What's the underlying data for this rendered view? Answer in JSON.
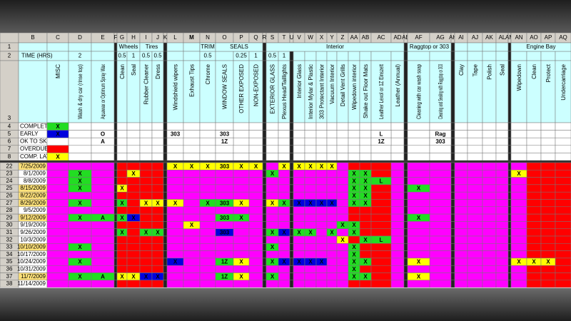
{
  "date_column": "B",
  "columns": [
    {
      "letter": "C",
      "header": "MISC",
      "fill": "#ff00ff"
    },
    {
      "letter": "D",
      "header": "Wash & dry car (rinse top)",
      "hours": 2,
      "fill": "#ff00ff"
    },
    {
      "letter": "E",
      "header": "Aquawax or Optimum Spray Wax",
      "fill": "#ff00ff"
    },
    {
      "letter": "F",
      "fill": "#222222"
    },
    {
      "letter": "G",
      "header": "Clean",
      "hours": 0.5,
      "fill": "#ff0000"
    },
    {
      "letter": "H",
      "header": "Seal",
      "hours": 1,
      "fill": "#ff0000"
    },
    {
      "letter": "I",
      "header": "Rubber Cleaner",
      "hours": 0.5,
      "fill": "#ff0000"
    },
    {
      "letter": "J",
      "header": "Dress",
      "hours": 0.5,
      "fill": "#ff0000"
    },
    {
      "letter": "K",
      "fill": "#222222"
    },
    {
      "letter": "L",
      "header": "Windshield wipers",
      "fill": "#ff00ff"
    },
    {
      "letter": "M",
      "header": "Exhaust Tips",
      "fill": "#ff00ff"
    },
    {
      "letter": "N",
      "header": "Chrome",
      "hours": 0.5,
      "fill": "#ff00ff"
    },
    {
      "letter": "O",
      "header": "WINDOW SEALS",
      "fill": "#ff00ff"
    },
    {
      "letter": "P",
      "header": "OTHER EXPOSED",
      "hours": 0.25,
      "fill": "#ff00ff"
    },
    {
      "letter": "Q",
      "header": "NON-EXPOSED",
      "hours": 1,
      "fill": "#ff00ff"
    },
    {
      "letter": "R",
      "fill": "#222222"
    },
    {
      "letter": "S",
      "header": "EXTERIOR GLASS",
      "hours": 0.5,
      "fill": "#ff00ff"
    },
    {
      "letter": "T",
      "header": "Plexus Head/Taillights",
      "hours": 1,
      "fill": "#ff00ff"
    },
    {
      "letter": "U",
      "fill": "#222222"
    },
    {
      "letter": "V",
      "header": "Interior Glass",
      "fill": "#ff00ff"
    },
    {
      "letter": "W",
      "header": "Interior Mylar & Plastic",
      "fill": "#ff00ff"
    },
    {
      "letter": "X",
      "header": "303 Protectant Interior",
      "fill": "#ff00ff"
    },
    {
      "letter": "Y",
      "header": "Vacuum Interior",
      "fill": "#ff00ff"
    },
    {
      "letter": "Z",
      "header": "Detail Vent Grills",
      "fill": "#ff00ff"
    },
    {
      "letter": "AA",
      "header": "Wipedown interior",
      "fill": "#ff0000"
    },
    {
      "letter": "AB",
      "header": "Shake out Floor Mats",
      "fill": "#ff0000"
    },
    {
      "letter": "AC",
      "header": "Leather Lexol or 1Z Einszett",
      "fill": "#ff0000"
    },
    {
      "letter": "AD",
      "header": "Leather (Annual)",
      "fill": "#ff00ff"
    },
    {
      "letter": "AE",
      "fill": "#222222"
    },
    {
      "letter": "AF",
      "header": "Cleaning with car wash soap",
      "fill": "#ff00ff"
    },
    {
      "letter": "AG",
      "header": "Cleaning and Sealing with Raggtop or 303",
      "fill": "#ff00ff"
    },
    {
      "letter": "AH",
      "fill": "#222222"
    },
    {
      "letter": "AI",
      "header": "Clay",
      "fill": "#ff00ff"
    },
    {
      "letter": "AJ",
      "header": "Tape",
      "fill": "#ff00ff"
    },
    {
      "letter": "AK",
      "header": "Polish",
      "fill": "#ff00ff"
    },
    {
      "letter": "AL",
      "header": "Seal",
      "fill": "#ff00ff"
    },
    {
      "letter": "AM",
      "fill": "#222222"
    },
    {
      "letter": "AN",
      "header": "Wipedown",
      "fill": "#ff00ff"
    },
    {
      "letter": "AO",
      "header": "Clean",
      "fill": "#ff0000"
    },
    {
      "letter": "AP",
      "header": "Protect",
      "fill": "#ff0000"
    },
    {
      "letter": "AQ",
      "header": "Undercarriage",
      "fill": "#ff0000"
    }
  ],
  "groups": [
    {
      "label": "Wheels",
      "from": "G",
      "to": "H"
    },
    {
      "label": "Tires",
      "from": "I",
      "to": "J"
    },
    {
      "label": "TRIM",
      "from": "N",
      "to": "N"
    },
    {
      "label": "SEALS",
      "from": "O",
      "to": "Q"
    },
    {
      "label": "Interior",
      "from": "S",
      "to": "AD"
    },
    {
      "label": "Raggtop or 303",
      "from": "AF",
      "to": "AG"
    },
    {
      "label": "Engine Bay",
      "from": "AN",
      "to": "AQ"
    }
  ],
  "header_rows": [
    1,
    2,
    3
  ],
  "time_label": "TIME (HRS)",
  "legend": [
    {
      "row": 4,
      "label": "COMPLETE",
      "marks": [
        [
          "C",
          "X",
          "#22dd22"
        ]
      ]
    },
    {
      "row": 5,
      "label": "EARLY",
      "marks": [
        [
          "C",
          "X",
          "#0000dd"
        ],
        [
          "E",
          "O",
          "#ffffff"
        ],
        [
          "L",
          "303",
          "#ffffff"
        ],
        [
          "O",
          "303",
          "#ffffff"
        ],
        [
          "AC",
          "L",
          "#ffffff"
        ],
        [
          "AG",
          "Rag",
          "#ffffff"
        ]
      ]
    },
    {
      "row": 6,
      "label": "OK TO SKIP",
      "marks": [
        [
          "E",
          "A",
          "#ffffff"
        ],
        [
          "O",
          "1Z",
          "#ffffff"
        ],
        [
          "AC",
          "1Z",
          "#ffffff"
        ],
        [
          "AG",
          "303",
          "#ffffff"
        ]
      ]
    },
    {
      "row": 7,
      "label": "OVERDUE",
      "marks": [
        [
          "C",
          "",
          "#ff0000"
        ]
      ]
    },
    {
      "row": 8,
      "label": "COMP. LATE",
      "marks": [
        [
          "C",
          "X",
          "#ffff00"
        ]
      ]
    }
  ],
  "rows": [
    {
      "row": 22,
      "date": "7/25/2009",
      "date_fill": "#ffe27a",
      "marks": [
        [
          "L",
          "X",
          "#ffff00"
        ],
        [
          "M",
          "X",
          "#ffff00"
        ],
        [
          "N",
          "X",
          "#ffff00"
        ],
        [
          "O",
          "303",
          "#ffff00"
        ],
        [
          "P",
          "X",
          "#ffff00"
        ],
        [
          "Q",
          "X",
          "#ffff00"
        ],
        [
          "T",
          "X",
          "#ffff00"
        ],
        [
          "V",
          "X",
          "#ffff00"
        ],
        [
          "W",
          "X",
          "#ffff00"
        ],
        [
          "X",
          "X",
          "#ffff00"
        ],
        [
          "Y",
          "X",
          "#ffff00"
        ]
      ]
    },
    {
      "row": 23,
      "date": "8/1/2009",
      "date_fill": "#ffffff",
      "marks": [
        [
          "D",
          "X",
          "#22dd22"
        ],
        [
          "H",
          "X",
          "#ffff00"
        ],
        [
          "S",
          "X",
          "#22dd22"
        ],
        [
          "AA",
          "X",
          "#22dd22"
        ],
        [
          "AB",
          "X",
          "#22dd22"
        ],
        [
          "AN",
          "X",
          "#ffff00"
        ]
      ]
    },
    {
      "row": 24,
      "date": "8/8/2009",
      "date_fill": "#ffffff",
      "marks": [
        [
          "D",
          "X",
          "#22dd22"
        ],
        [
          "AA",
          "X",
          "#22dd22"
        ],
        [
          "AB",
          "X",
          "#22dd22"
        ],
        [
          "AC",
          "L",
          "#22dd22"
        ]
      ]
    },
    {
      "row": 25,
      "date": "8/15/2009",
      "date_fill": "#ffe27a",
      "marks": [
        [
          "D",
          "X",
          "#22dd22"
        ],
        [
          "G",
          "X",
          "#ffff00"
        ],
        [
          "AA",
          "X",
          "#22dd22"
        ],
        [
          "AB",
          "X",
          "#22dd22"
        ],
        [
          "AF",
          "X",
          "#22dd22"
        ]
      ]
    },
    {
      "row": 26,
      "date": "8/22/2009",
      "date_fill": "#ffe27a",
      "marks": [
        [
          "AA",
          "X",
          "#22dd22"
        ],
        [
          "AB",
          "X",
          "#22dd22"
        ]
      ]
    },
    {
      "row": 27,
      "date": "8/29/2009",
      "date_fill": "#ffe27a",
      "marks": [
        [
          "D",
          "X",
          "#22dd22"
        ],
        [
          "G",
          "X",
          "#22dd22"
        ],
        [
          "I",
          "X",
          "#ffff00"
        ],
        [
          "J",
          "X",
          "#ffff00"
        ],
        [
          "L",
          "X",
          "#ffff00"
        ],
        [
          "N",
          "X",
          "#22dd22"
        ],
        [
          "O",
          "303",
          "#22dd22"
        ],
        [
          "P",
          "X",
          "#ffff00"
        ],
        [
          "S",
          "X",
          "#ffff00"
        ],
        [
          "T",
          "X",
          "#22dd22"
        ],
        [
          "V",
          "X",
          "#0000dd"
        ],
        [
          "W",
          "X",
          "#0000dd"
        ],
        [
          "X",
          "X",
          "#0000dd"
        ],
        [
          "Y",
          "X",
          "#0000dd"
        ],
        [
          "AA",
          "X",
          "#22dd22"
        ],
        [
          "AB",
          "X",
          "#22dd22"
        ]
      ]
    },
    {
      "row": 28,
      "date": "9/5/2009",
      "date_fill": "#ffffff",
      "marks": []
    },
    {
      "row": 29,
      "date": "9/12/2009",
      "date_fill": "#ffe27a",
      "marks": [
        [
          "D",
          "X",
          "#22dd22"
        ],
        [
          "E",
          "A",
          "#22dd22"
        ],
        [
          "G",
          "X",
          "#22dd22"
        ],
        [
          "H",
          "X",
          "#0000dd"
        ],
        [
          "O",
          "303",
          "#22dd22"
        ],
        [
          "P",
          "X",
          "#22dd22"
        ],
        [
          "AF",
          "X",
          "#22dd22"
        ]
      ]
    },
    {
      "row": 30,
      "date": "9/19/2009",
      "date_fill": "#ffffff",
      "marks": [
        [
          "M",
          "X",
          "#ffff00"
        ],
        [
          "Z",
          "X",
          "#22dd22"
        ],
        [
          "AA",
          "X",
          "#22dd22"
        ]
      ]
    },
    {
      "row": 31,
      "date": "9/26/2009",
      "date_fill": "#ffffff",
      "marks": [
        [
          "G",
          "X",
          "#22dd22"
        ],
        [
          "I",
          "X",
          "#22dd22"
        ],
        [
          "J",
          "X",
          "#22dd22"
        ],
        [
          "O",
          "303",
          "#0000dd"
        ],
        [
          "S",
          "X",
          "#22dd22"
        ],
        [
          "T",
          "X",
          "#0000dd"
        ],
        [
          "V",
          "X",
          "#22dd22"
        ],
        [
          "W",
          "X",
          "#22dd22"
        ],
        [
          "Y",
          "X",
          "#22dd22"
        ],
        [
          "AA",
          "X",
          "#22dd22"
        ]
      ]
    },
    {
      "row": 32,
      "date": "10/3/2009",
      "date_fill": "#ffffff",
      "marks": [
        [
          "Z",
          "X",
          "#ffff00"
        ],
        [
          "AB",
          "X",
          "#22dd22"
        ],
        [
          "AC",
          "L",
          "#22dd22"
        ]
      ]
    },
    {
      "row": 33,
      "date": "10/10/2009",
      "date_fill": "#ffe27a",
      "marks": [
        [
          "D",
          "X",
          "#22dd22"
        ],
        [
          "S",
          "X",
          "#22dd22"
        ],
        [
          "AA",
          "X",
          "#22dd22"
        ]
      ]
    },
    {
      "row": 34,
      "date": "10/17/2009",
      "date_fill": "#ffffff",
      "marks": [
        [
          "AA",
          "X",
          "#22dd22"
        ]
      ]
    },
    {
      "row": 35,
      "date": "10/24/2009",
      "date_fill": "#ffffff",
      "marks": [
        [
          "D",
          "X",
          "#22dd22"
        ],
        [
          "L",
          "X",
          "#0000dd"
        ],
        [
          "O",
          "1Z",
          "#22dd22"
        ],
        [
          "P",
          "X",
          "#ffff00"
        ],
        [
          "S",
          "X",
          "#22dd22"
        ],
        [
          "T",
          "X",
          "#0000dd"
        ],
        [
          "V",
          "X",
          "#0000dd"
        ],
        [
          "W",
          "X",
          "#0000dd"
        ],
        [
          "X",
          "X",
          "#0000dd"
        ],
        [
          "AA",
          "X",
          "#22dd22"
        ],
        [
          "AB",
          "X",
          "#22dd22"
        ],
        [
          "AF",
          "X",
          "#ffff00"
        ],
        [
          "AN",
          "X",
          "#ffff00"
        ],
        [
          "AO",
          "X",
          "#ffff00"
        ],
        [
          "AP",
          "X",
          "#ffff00"
        ]
      ]
    },
    {
      "row": 36,
      "date": "10/31/2009",
      "date_fill": "#ffffff",
      "marks": [
        [
          "AA",
          "X",
          "#22dd22"
        ]
      ]
    },
    {
      "row": 37,
      "date": "11/7/2009",
      "date_fill": "#ffe27a",
      "marks": [
        [
          "D",
          "X",
          "#22dd22"
        ],
        [
          "E",
          "A",
          "#22dd22"
        ],
        [
          "G",
          "X",
          "#ffff00"
        ],
        [
          "H",
          "X",
          "#ffff00"
        ],
        [
          "I",
          "X",
          "#0000dd"
        ],
        [
          "J",
          "X",
          "#0000dd"
        ],
        [
          "O",
          "1Z",
          "#22dd22"
        ],
        [
          "P",
          "X",
          "#ffff00"
        ],
        [
          "S",
          "X",
          "#22dd22"
        ],
        [
          "AA",
          "X",
          "#22dd22"
        ],
        [
          "AB",
          "X",
          "#22dd22"
        ],
        [
          "AF",
          "X",
          "#ffff00"
        ]
      ]
    },
    {
      "row": 38,
      "date": "11/14/2009",
      "date_fill": "#ffffff",
      "marks": []
    }
  ]
}
